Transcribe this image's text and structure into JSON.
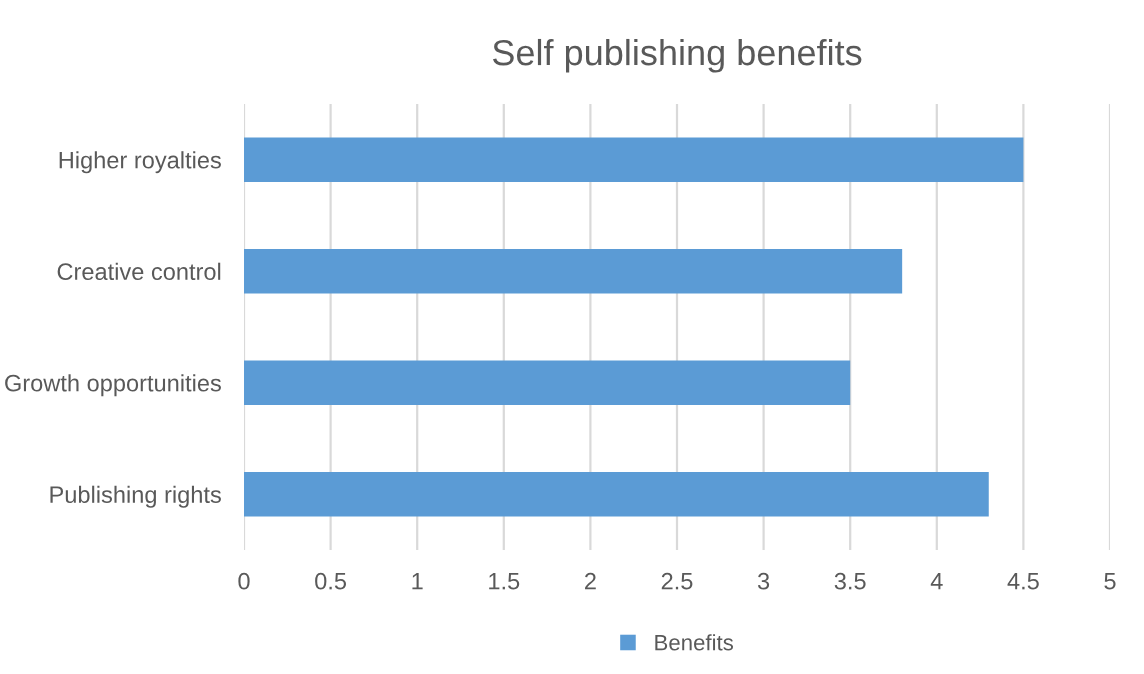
{
  "chart_data": {
    "type": "bar",
    "orientation": "horizontal",
    "title": "Self publishing benefits",
    "categories": [
      "Higher royalties",
      "Creative control",
      "Growth opportunities",
      "Publishing rights"
    ],
    "series": [
      {
        "name": "Benefits",
        "color": "#5b9bd5",
        "values": [
          4.5,
          3.8,
          3.5,
          4.3
        ]
      }
    ],
    "xlim": [
      0,
      5
    ],
    "xticks": [
      0,
      0.5,
      1,
      1.5,
      2,
      2.5,
      3,
      3.5,
      4,
      4.5,
      5
    ],
    "grid": "x",
    "legend": "bottom"
  }
}
